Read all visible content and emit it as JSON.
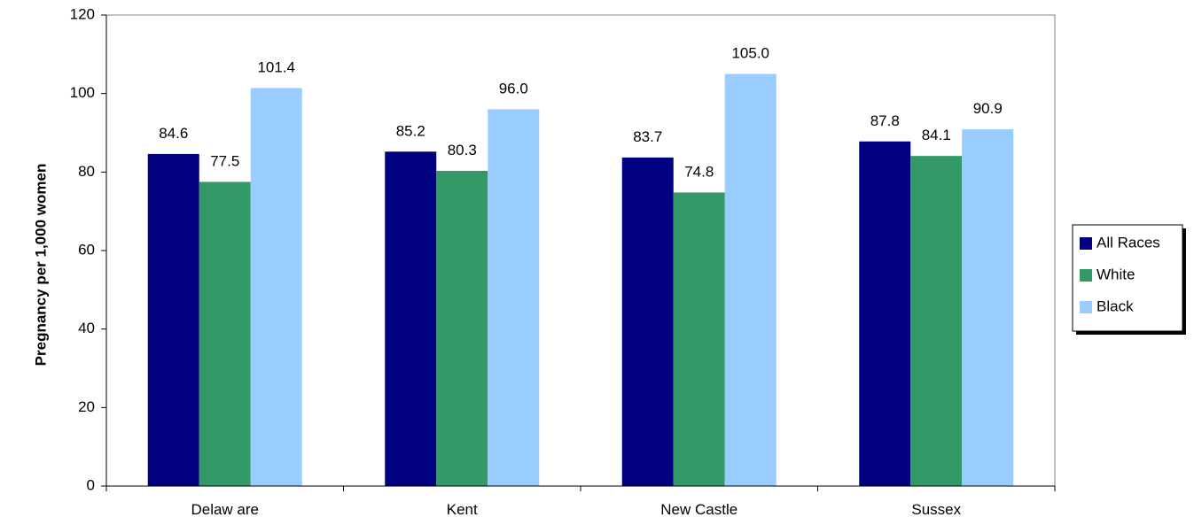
{
  "chart_data": {
    "type": "bar",
    "title": "",
    "xlabel": "",
    "ylabel": "Pregnancy per 1,000 women",
    "ylim": [
      0,
      120
    ],
    "yticks": [
      0,
      20,
      40,
      60,
      80,
      100,
      120
    ],
    "categories": [
      "Delaw are",
      "Kent",
      "New  Castle",
      "Sussex"
    ],
    "series": [
      {
        "name": "All Races",
        "color": "#000080",
        "values": [
          84.6,
          85.2,
          83.7,
          87.8
        ],
        "labels": [
          "84.6",
          "85.2",
          "83.7",
          "87.8"
        ]
      },
      {
        "name": "White",
        "color": "#339966",
        "values": [
          77.5,
          80.3,
          74.8,
          84.1
        ],
        "labels": [
          "77.5",
          "80.3",
          "74.8",
          "84.1"
        ]
      },
      {
        "name": "Black",
        "color": "#99CCFF",
        "values": [
          101.4,
          96.0,
          105.0,
          90.9
        ],
        "labels": [
          "101.4",
          "96.0",
          "105.0",
          "90.9"
        ]
      }
    ],
    "grid": false,
    "legend": "right"
  }
}
